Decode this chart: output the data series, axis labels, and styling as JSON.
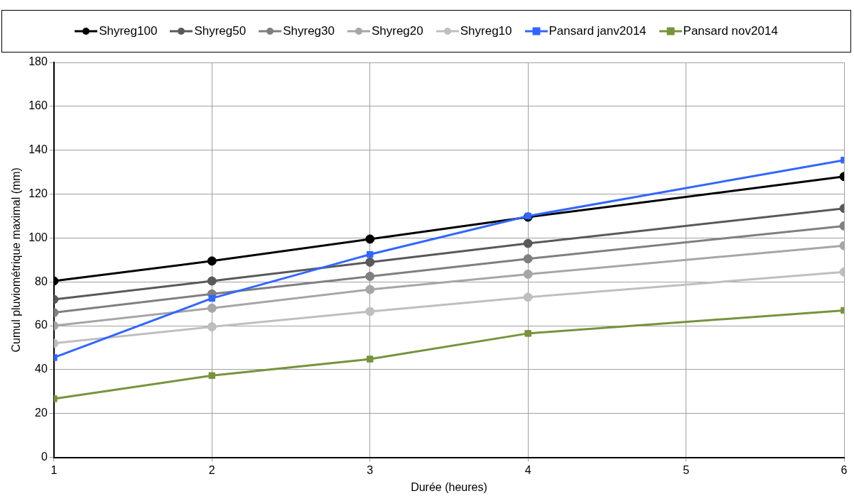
{
  "chart_data": {
    "type": "line",
    "xlabel": "Durée (heures)",
    "ylabel": "Cumul pluviométrique maximal (mm)",
    "xlim": [
      1,
      6
    ],
    "xticks": [
      1,
      2,
      3,
      4,
      5,
      6
    ],
    "ylim": [
      0,
      180
    ],
    "yticks": [
      0,
      20,
      40,
      60,
      80,
      100,
      120,
      140,
      160,
      180
    ],
    "grid": true,
    "legend": "top",
    "line_style": "solid",
    "series": [
      {
        "name": "Shyreg100",
        "color": "#000000",
        "marker": "circle",
        "x": [
          1,
          2,
          3,
          4,
          6
        ],
        "values": [
          80.4,
          89.5,
          99.5,
          109.5,
          128
        ]
      },
      {
        "name": "Shyreg50",
        "color": "#595959",
        "marker": "circle",
        "x": [
          1,
          2,
          3,
          4,
          6
        ],
        "values": [
          72,
          80.4,
          89,
          97.5,
          113.5
        ]
      },
      {
        "name": "Shyreg30",
        "color": "#7f7f7f",
        "marker": "circle",
        "x": [
          1,
          2,
          3,
          4,
          6
        ],
        "values": [
          66,
          74.5,
          82.5,
          90.5,
          105.5
        ]
      },
      {
        "name": "Shyreg20",
        "color": "#a6a6a6",
        "marker": "circle",
        "x": [
          1,
          2,
          3,
          4,
          6
        ],
        "values": [
          60,
          68,
          76.5,
          83.5,
          96.5
        ]
      },
      {
        "name": "Shyreg10",
        "color": "#bfbfbf",
        "marker": "circle",
        "x": [
          1,
          2,
          3,
          4,
          6
        ],
        "values": [
          52,
          59.5,
          66.5,
          73,
          84.5
        ]
      },
      {
        "name": "Pansard janv2014",
        "color": "#3366ff",
        "marker": "square",
        "x": [
          1,
          2,
          3,
          4,
          6
        ],
        "values": [
          45.5,
          72.5,
          92.5,
          110,
          135.5
        ]
      },
      {
        "name": "Pansard nov2014",
        "color": "#77933c",
        "marker": "square",
        "x": [
          1,
          2,
          3,
          4,
          6
        ],
        "values": [
          26.7,
          37.3,
          44.8,
          56.5,
          67
        ]
      }
    ]
  }
}
